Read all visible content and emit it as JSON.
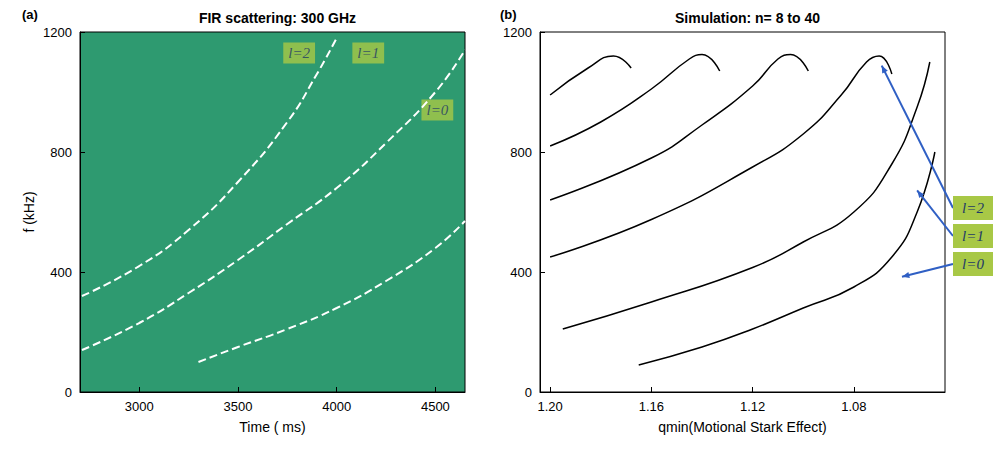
{
  "chart_data": [
    {
      "type": "line",
      "title": "FIR scattering: 300 GHz",
      "panel": "(a)",
      "x_label": "Time ( ms)",
      "y_label": "f (kHz)",
      "xlim": [
        2700,
        4650
      ],
      "xticks": [
        3000,
        3500,
        4000,
        4500
      ],
      "ylim": [
        0,
        1200
      ],
      "yticks": [
        0,
        400,
        800,
        1200
      ],
      "grid": false,
      "series": [
        {
          "color": "#ffffff",
          "line_style": "dashed",
          "x": [
            2710,
            3000,
            3250,
            3500,
            3750,
            3900,
            4000
          ],
          "values": [
            320,
            420,
            540,
            700,
            900,
            1060,
            1180
          ]
        },
        {
          "color": "#ffffff",
          "line_style": "dashed",
          "x": [
            2710,
            3000,
            3250,
            3500,
            3750,
            4000,
            4250,
            4500,
            4650
          ],
          "values": [
            140,
            230,
            330,
            440,
            560,
            680,
            830,
            1000,
            1140
          ]
        },
        {
          "color": "#ffffff",
          "line_style": "dashed",
          "x": [
            3300,
            3500,
            3750,
            4000,
            4250,
            4500,
            4650
          ],
          "values": [
            100,
            150,
            210,
            280,
            370,
            480,
            570
          ]
        }
      ],
      "annotations": [
        {
          "text": "l=2",
          "x": 3810,
          "y": 1130
        },
        {
          "text": "l=1",
          "x": 4160,
          "y": 1130
        },
        {
          "text": "l=0",
          "x": 4510,
          "y": 940
        }
      ]
    },
    {
      "type": "line",
      "title": "Simulation: n= 8 to 40",
      "panel": "(b)",
      "x_label": "qmin(Motional Stark Effect)",
      "xlim": [
        1.204,
        1.044
      ],
      "xticks": [
        {
          "value": 1.2,
          "label": "1.20"
        },
        1.16,
        1.12,
        1.08
      ],
      "ylim": [
        0,
        1200
      ],
      "yticks": [
        0,
        400,
        800,
        1200
      ],
      "grid": false,
      "series": [
        {
          "color": "#000000",
          "line_style": "solid",
          "x": [
            1.165,
            1.14,
            1.12,
            1.1,
            1.08,
            1.065,
            1.055,
            1.048
          ],
          "values": [
            90,
            150,
            210,
            280,
            350,
            450,
            600,
            800
          ]
        },
        {
          "color": "#000000",
          "line_style": "solid",
          "x": [
            1.195,
            1.16,
            1.12,
            1.1,
            1.08,
            1.065,
            1.055,
            1.05
          ],
          "values": [
            210,
            300,
            415,
            500,
            600,
            760,
            950,
            1100
          ]
        },
        {
          "color": "#000000",
          "line_style": "solid",
          "x": [
            1.2,
            1.16,
            1.12,
            1.1,
            1.085,
            1.075,
            1.07,
            1.065
          ],
          "values": [
            450,
            575,
            750,
            860,
            990,
            1100,
            1120,
            1060
          ]
        },
        {
          "color": "#000000",
          "line_style": "solid",
          "x": [
            1.2,
            1.16,
            1.14,
            1.12,
            1.11,
            1.105,
            1.098
          ],
          "values": [
            640,
            780,
            890,
            1020,
            1110,
            1125,
            1070
          ]
        },
        {
          "color": "#000000",
          "line_style": "solid",
          "x": [
            1.2,
            1.18,
            1.16,
            1.145,
            1.14,
            1.133
          ],
          "values": [
            820,
            900,
            1010,
            1110,
            1125,
            1070
          ]
        },
        {
          "color": "#000000",
          "line_style": "solid",
          "x": [
            1.2,
            1.185,
            1.175,
            1.168
          ],
          "values": [
            990,
            1080,
            1120,
            1080
          ]
        }
      ],
      "annotations": [
        {
          "text": "l=2",
          "x": 1.069,
          "y": 1088
        },
        {
          "text": "l=1",
          "x": 1.055,
          "y": 672
        },
        {
          "text": "l=0",
          "x": 1.061,
          "y": 384
        }
      ]
    }
  ]
}
